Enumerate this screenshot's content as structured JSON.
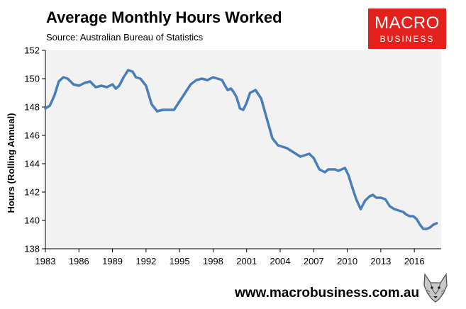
{
  "header": {
    "title": "Average Monthly Hours Worked",
    "subtitle": "Source: Australian Bureau of Statistics"
  },
  "logo": {
    "line1": "MACRO",
    "line2": "BUSINESS",
    "color": "#e2211c"
  },
  "footer": {
    "website": "www.macrobusiness.com.au",
    "emblem_icon": "wolf-icon"
  },
  "chart_data": {
    "type": "line",
    "title": "Average Monthly Hours Worked",
    "xlabel": "",
    "ylabel": "Hours (Rolling Annual)",
    "xlim": [
      1983,
      2018.4
    ],
    "ylim": [
      138,
      152
    ],
    "x_ticks": [
      1983,
      1986,
      1989,
      1992,
      1995,
      1998,
      2001,
      2004,
      2007,
      2010,
      2013,
      2016
    ],
    "x_tick_labels": [
      "1983",
      "1986",
      "1989",
      "1992",
      "1995",
      "1998",
      "2001",
      "2004",
      "2007",
      "2010",
      "2013",
      "2016"
    ],
    "y_ticks": [
      138,
      140,
      142,
      144,
      146,
      148,
      150,
      152
    ],
    "y_tick_labels": [
      "138",
      "140",
      "142",
      "144",
      "146",
      "148",
      "150",
      "152"
    ],
    "grid": false,
    "background": "#f2f2f2",
    "line_color": "#4a7ebb",
    "series": [
      {
        "x": [
          1983.0,
          1983.4,
          1983.8,
          1984.2,
          1984.6,
          1985.0,
          1985.5,
          1986.0,
          1986.5,
          1987.0,
          1987.5,
          1988.0,
          1988.5,
          1989.0,
          1989.3,
          1989.6,
          1990.0,
          1990.4,
          1990.8,
          1991.1,
          1991.5,
          1992.0,
          1992.5,
          1993.0,
          1993.5,
          1994.0,
          1994.5,
          1995.0,
          1995.5,
          1996.0,
          1996.5,
          1997.0,
          1997.5,
          1998.0,
          1998.4,
          1998.8,
          1999.0,
          1999.3,
          1999.6,
          1999.8,
          2000.1,
          2000.4,
          2000.7,
          2001.0,
          2001.3,
          2001.8,
          2002.3,
          2002.8,
          2003.3,
          2003.8,
          2004.2,
          2004.6,
          2005.0,
          2005.4,
          2005.8,
          2006.2,
          2006.6,
          2007.0,
          2007.5,
          2008.0,
          2008.3,
          2008.6,
          2008.9,
          2009.2,
          2009.5,
          2009.8,
          2010.1,
          2010.5,
          2010.8,
          2011.2,
          2011.6,
          2012.0,
          2012.3,
          2012.6,
          2013.0,
          2013.4,
          2013.8,
          2014.2,
          2014.6,
          2015.0,
          2015.3,
          2015.6,
          2015.9,
          2016.2,
          2016.5,
          2016.8,
          2017.1,
          2017.4,
          2017.7,
          2018.0
        ],
        "y": [
          147.9,
          148.1,
          148.8,
          149.8,
          150.1,
          150.0,
          149.6,
          149.5,
          149.7,
          149.8,
          149.4,
          149.5,
          149.4,
          149.6,
          149.3,
          149.5,
          150.1,
          150.6,
          150.5,
          150.1,
          150.0,
          149.5,
          148.2,
          147.7,
          147.8,
          147.8,
          147.8,
          148.4,
          149.0,
          149.6,
          149.9,
          150.0,
          149.9,
          150.1,
          150.0,
          149.9,
          149.6,
          149.2,
          149.3,
          149.1,
          148.7,
          147.9,
          147.8,
          148.3,
          149.0,
          149.2,
          148.6,
          147.2,
          145.8,
          145.3,
          145.2,
          145.1,
          144.9,
          144.7,
          144.5,
          144.6,
          144.7,
          144.4,
          143.6,
          143.4,
          143.6,
          143.6,
          143.6,
          143.5,
          143.6,
          143.7,
          143.2,
          142.2,
          141.5,
          140.8,
          141.4,
          141.7,
          141.8,
          141.6,
          141.6,
          141.5,
          141.0,
          140.8,
          140.7,
          140.6,
          140.4,
          140.3,
          140.3,
          140.1,
          139.7,
          139.4,
          139.4,
          139.5,
          139.7,
          139.8
        ]
      }
    ]
  }
}
